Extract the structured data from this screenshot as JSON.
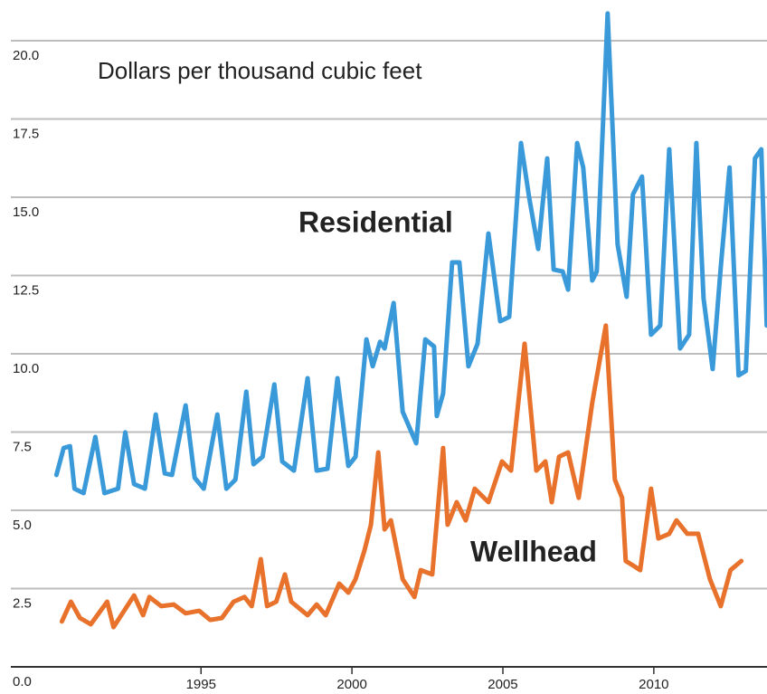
{
  "chart_data": {
    "type": "line",
    "annotation": "Dollars per thousand cubic feet",
    "xlim": [
      1988.7,
      2013.75
    ],
    "ylim": [
      0,
      21.3
    ],
    "xticks": [
      1995,
      2000,
      2005,
      2010
    ],
    "yticks": [
      {
        "value": 0,
        "label": "0.0"
      },
      2.5,
      {
        "value": 5,
        "label": "5.0"
      },
      7.5,
      {
        "value": 10,
        "label": "10.0"
      },
      12.5,
      {
        "value": 15,
        "label": "15.0"
      },
      17.5,
      {
        "value": 20,
        "label": "20.0"
      }
    ],
    "grid": true,
    "series": [
      {
        "name": "Residential",
        "color": "#3a9ad9",
        "x": [
          1990.21,
          1990.45,
          1990.66,
          1990.81,
          1991.11,
          1991.5,
          1991.8,
          1992.25,
          1992.49,
          1992.78,
          1993.14,
          1993.5,
          1993.8,
          1994.04,
          1994.49,
          1994.79,
          1995.09,
          1995.54,
          1995.84,
          1996.14,
          1996.5,
          1996.74,
          1997.04,
          1997.43,
          1997.69,
          1998.08,
          1998.53,
          1998.83,
          1999.19,
          1999.52,
          1999.88,
          2000.12,
          2000.48,
          2000.69,
          2000.93,
          2001.08,
          2001.38,
          2001.68,
          2002.13,
          2002.43,
          2002.72,
          2002.81,
          2003.02,
          2003.32,
          2003.56,
          2003.86,
          2004.16,
          2004.52,
          2004.91,
          2005.21,
          2005.6,
          2005.87,
          2006.17,
          2006.47,
          2006.68,
          2006.98,
          2007.16,
          2007.46,
          2007.66,
          2007.96,
          2008.11,
          2008.47,
          2008.8,
          2009.1,
          2009.31,
          2009.61,
          2009.91,
          2010.21,
          2010.51,
          2010.87,
          2011.17,
          2011.41,
          2011.65,
          2011.95,
          2012.22,
          2012.51,
          2012.81,
          2013.05,
          2013.35,
          2013.56,
          2013.74
        ],
        "values": [
          6.13,
          6.99,
          7.05,
          5.69,
          5.55,
          7.34,
          5.55,
          5.69,
          7.49,
          5.84,
          5.69,
          8.06,
          6.18,
          6.13,
          8.35,
          6.04,
          5.69,
          8.06,
          5.69,
          5.98,
          8.79,
          6.47,
          6.71,
          9.02,
          6.56,
          6.27,
          9.22,
          6.27,
          6.33,
          9.22,
          6.42,
          6.71,
          10.46,
          9.6,
          10.38,
          10.17,
          11.62,
          8.15,
          7.14,
          10.46,
          10.23,
          8.01,
          8.73,
          12.92,
          12.92,
          9.6,
          10.32,
          13.84,
          11.04,
          11.18,
          16.73,
          15.0,
          13.35,
          16.24,
          12.69,
          12.63,
          12.05,
          16.73,
          15.95,
          12.34,
          12.63,
          20.87,
          13.5,
          11.82,
          15.09,
          15.66,
          10.61,
          10.9,
          16.53,
          10.17,
          10.61,
          16.73,
          11.76,
          9.51,
          12.77,
          15.95,
          9.31,
          9.45,
          16.24,
          16.53,
          10.9
        ]
      },
      {
        "name": "Wellhead",
        "color": "#e8722c",
        "x": [
          1990.39,
          1990.69,
          1990.99,
          1991.35,
          1991.89,
          1992.1,
          1992.78,
          1993.08,
          1993.29,
          1993.68,
          1994.1,
          1994.49,
          1994.94,
          1995.3,
          1995.69,
          1996.08,
          1996.44,
          1996.68,
          1996.98,
          1997.19,
          1997.49,
          1997.78,
          1997.99,
          1998.53,
          1998.83,
          1999.13,
          1999.58,
          1999.88,
          2000.12,
          2000.42,
          2000.63,
          2000.87,
          2001.08,
          2001.29,
          2001.68,
          2002.07,
          2002.28,
          2002.66,
          2003.02,
          2003.17,
          2003.47,
          2003.77,
          2004.07,
          2004.52,
          2004.97,
          2005.27,
          2005.72,
          2006.11,
          2006.41,
          2006.62,
          2006.86,
          2007.16,
          2007.51,
          2007.96,
          2008.41,
          2008.71,
          2008.95,
          2009.07,
          2009.31,
          2009.55,
          2009.91,
          2010.15,
          2010.51,
          2010.75,
          2011.11,
          2011.47,
          2011.86,
          2012.22,
          2012.54,
          2012.9
        ],
        "values": [
          1.45,
          2.08,
          1.56,
          1.36,
          2.08,
          1.27,
          2.28,
          1.65,
          2.23,
          1.94,
          1.99,
          1.71,
          1.79,
          1.5,
          1.56,
          2.08,
          2.23,
          1.94,
          3.44,
          1.94,
          2.08,
          2.95,
          2.08,
          1.65,
          1.99,
          1.65,
          2.66,
          2.37,
          2.8,
          3.73,
          4.54,
          6.85,
          4.39,
          4.68,
          2.8,
          2.23,
          3.09,
          2.95,
          6.99,
          4.54,
          5.26,
          4.68,
          5.69,
          5.26,
          6.56,
          6.27,
          10.32,
          6.27,
          6.56,
          5.26,
          6.71,
          6.85,
          5.4,
          8.44,
          10.9,
          5.98,
          5.4,
          3.38,
          3.24,
          3.09,
          5.69,
          4.1,
          4.25,
          4.68,
          4.25,
          4.25,
          2.8,
          1.94,
          3.09,
          3.38
        ]
      }
    ]
  }
}
